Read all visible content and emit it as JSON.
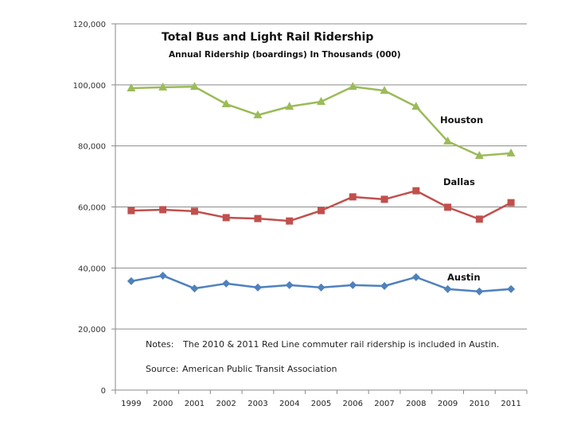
{
  "chart_data": {
    "type": "line",
    "title": "Total Bus and Light Rail Ridership",
    "subtitle": "Annual Ridership (boardings) In Thousands (000)",
    "xlabel": "",
    "ylabel": "",
    "ylim": [
      0,
      120000
    ],
    "yticks": [
      0,
      20000,
      40000,
      60000,
      80000,
      100000,
      120000
    ],
    "ytick_labels": [
      "0",
      "20,000",
      "40,000",
      "60,000",
      "80,000",
      "100,000",
      "120,000"
    ],
    "grid": "horizontal",
    "categories": [
      "1999",
      "2000",
      "2001",
      "2002",
      "2003",
      "2004",
      "2005",
      "2006",
      "2007",
      "2008",
      "2009",
      "2010",
      "2011"
    ],
    "series": [
      {
        "name": "Houston",
        "color": "#9BBB59",
        "marker": "triangle",
        "values": [
          98900,
          99200,
          99400,
          93700,
          90100,
          92900,
          94500,
          99400,
          98100,
          92900,
          81500,
          76800,
          77600
        ]
      },
      {
        "name": "Dallas",
        "color": "#C0504D",
        "marker": "square",
        "values": [
          58800,
          59100,
          58600,
          56500,
          56200,
          55400,
          58800,
          63300,
          62500,
          65300,
          59900,
          56000,
          61400
        ]
      },
      {
        "name": "Austin",
        "color": "#4F81BD",
        "marker": "diamond",
        "values": [
          35700,
          37500,
          33300,
          34900,
          33600,
          34400,
          33600,
          34400,
          34100,
          37000,
          33100,
          32300,
          33100
        ]
      }
    ],
    "series_labels": [
      {
        "text": "Houston",
        "near": "2009-2010 above line"
      },
      {
        "text": "Dallas",
        "near": "2009-2010 above line"
      },
      {
        "text": "Austin",
        "near": "2009-2010 above line"
      }
    ],
    "notes": {
      "notes_label": "Notes:",
      "notes_text": "The 2010 & 2011 Red Line commuter rail ridership is included in Austin.",
      "source_label": "Source:",
      "source_text": "American Public Transit Association"
    }
  }
}
